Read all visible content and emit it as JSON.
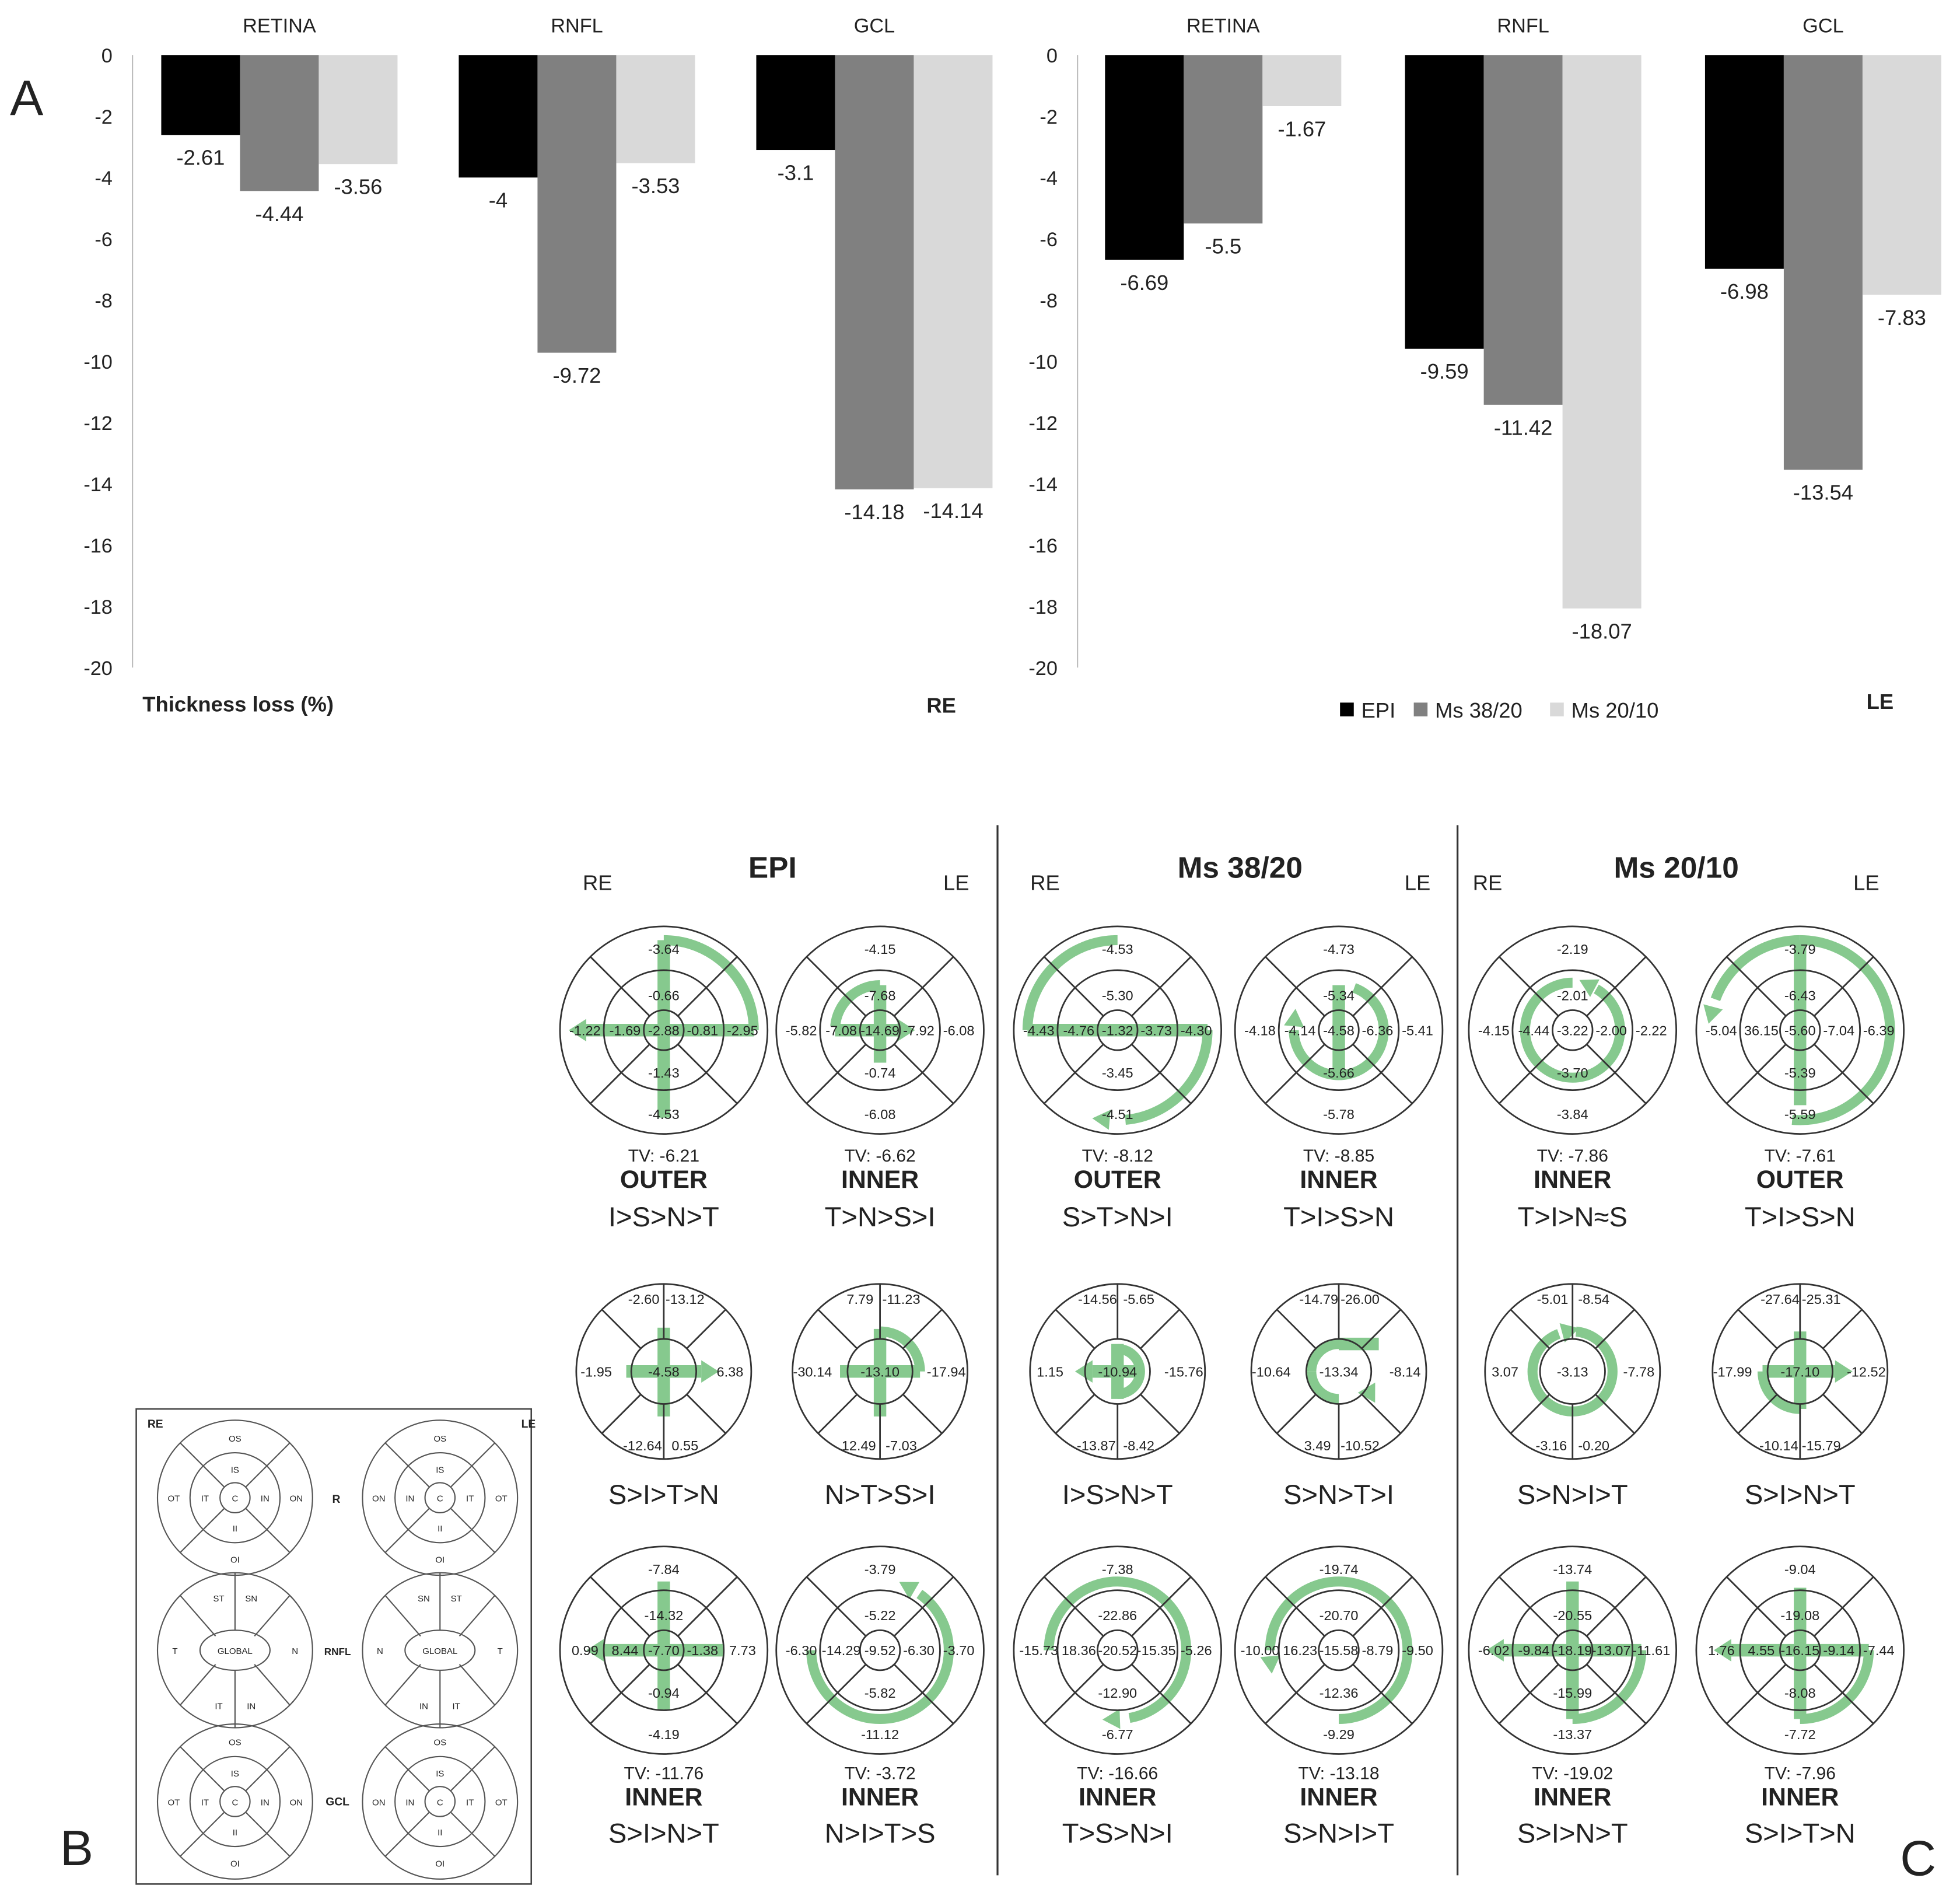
{
  "panel_letters": {
    "a": "A",
    "b": "B",
    "c": "C"
  },
  "colors": {
    "epi": "#000000",
    "ms3820": "#808080",
    "ms2010": "#d9d9d9",
    "arrow": "#86c98e",
    "ring": "#333333"
  },
  "chart_data": [
    {
      "type": "bar",
      "eye_label": "RE",
      "ylabel": "Thickness loss (%)",
      "ylim": [
        -20,
        0
      ],
      "yticks": [
        "0",
        "-2",
        "-4",
        "-6",
        "-8",
        "-10",
        "-12",
        "-14",
        "-16",
        "-18",
        "-20"
      ],
      "categories": [
        "RETINA",
        "RNFL",
        "GCL"
      ],
      "series": [
        {
          "name": "EPI",
          "values": [
            -2.61,
            -4,
            -3.1
          ],
          "labels": [
            "-2.61",
            "-4",
            "-3.1"
          ]
        },
        {
          "name": "Ms 38/20",
          "values": [
            -4.44,
            -9.72,
            -14.18
          ],
          "labels": [
            "-4.44",
            "-9.72",
            "-14.18"
          ]
        },
        {
          "name": "Ms 20/10",
          "values": [
            -3.56,
            -3.53,
            -14.14
          ],
          "labels": [
            "-3.56",
            "-3.53",
            "-14.14"
          ]
        }
      ]
    },
    {
      "type": "bar",
      "eye_label": "LE",
      "ylim": [
        -20,
        0
      ],
      "yticks": [
        "0",
        "-2",
        "-4",
        "-6",
        "-8",
        "-10",
        "-12",
        "-14",
        "-16",
        "-18",
        "-20"
      ],
      "categories": [
        "RETINA",
        "RNFL",
        "GCL"
      ],
      "legend": [
        "EPI",
        "Ms 38/20",
        "Ms 20/10"
      ],
      "series": [
        {
          "name": "EPI",
          "values": [
            -6.69,
            -9.59,
            -6.98
          ],
          "labels": [
            "-6.69",
            "-9.59",
            "-6.98"
          ]
        },
        {
          "name": "Ms 38/20",
          "values": [
            -5.5,
            -11.42,
            -13.54
          ],
          "labels": [
            "-5.5",
            "-11.42",
            "-13.54"
          ]
        },
        {
          "name": "Ms 20/10",
          "values": [
            -1.67,
            -18.07,
            -7.83
          ],
          "labels": [
            "-1.67",
            "-18.07",
            "-7.83"
          ]
        }
      ]
    }
  ],
  "legend_box": {
    "re": "RE",
    "le": "LE",
    "row_labels": [
      "R",
      "RNFL",
      "GCL"
    ],
    "retina_re": [
      "OS",
      "IS",
      "OT",
      "IT",
      "C",
      "IN",
      "ON",
      "II",
      "OI"
    ],
    "retina_le": [
      "OS",
      "IS",
      "ON",
      "IN",
      "C",
      "IT",
      "OT",
      "II",
      "OI"
    ],
    "rnfl_re": [
      "ST",
      "SN",
      "T",
      "GLOBAL",
      "N",
      "IT",
      "IN"
    ],
    "rnfl_le": [
      "SN",
      "ST",
      "N",
      "GLOBAL",
      "T",
      "IN",
      "IT"
    ],
    "gcl_re": [
      "OS",
      "IS",
      "OT",
      "IT",
      "C",
      "IN",
      "ON",
      "II",
      "OI"
    ],
    "gcl_le": [
      "OS",
      "IS",
      "ON",
      "IN",
      "C",
      "IT",
      "OT",
      "II",
      "OI"
    ]
  },
  "groups": [
    {
      "title": "EPI",
      "re": "RE",
      "le": "LE",
      "retina": [
        {
          "vals": [
            "-3.64",
            "-0.66",
            "-1.22",
            "-1.69",
            "-2.88",
            "-0.81",
            "-2.95",
            "-1.43",
            "-4.53"
          ],
          "tv": "TV: -6.21",
          "layer": "OUTER",
          "order": "I>S>N>T"
        },
        {
          "vals": [
            "-4.15",
            "-7.68",
            "-5.82",
            "-7.08",
            "-14.69",
            "-7.92",
            "-6.08",
            "-0.74",
            "-6.08"
          ],
          "tv": "TV: -6.62",
          "layer": "INNER",
          "order": "T>N>S>I"
        }
      ],
      "rnfl": [
        {
          "vals": [
            "-2.60",
            "-13.12",
            "-1.95",
            "-4.58",
            "6.38",
            "-12.64",
            "0.55"
          ],
          "order": "S>I>T>N"
        },
        {
          "vals": [
            "7.79",
            "-11.23",
            "-30.14",
            "-13.10",
            "-17.94",
            "12.49",
            "-7.03"
          ],
          "order": "N>T>S>I"
        }
      ],
      "gcl": [
        {
          "vals": [
            "-7.84",
            "-14.32",
            "0.99",
            "8.44",
            "-7.70",
            "-1.38",
            "7.73",
            "-0.94",
            "-4.19"
          ],
          "tv": "TV: -11.76",
          "layer": "INNER",
          "order": "S>I>N>T"
        },
        {
          "vals": [
            "-3.79",
            "-5.22",
            "-6.30",
            "-14.29",
            "-9.52",
            "-6.30",
            "-3.70",
            "-5.82",
            "-11.12"
          ],
          "tv": "TV: -3.72",
          "layer": "INNER",
          "order": "N>I>T>S"
        }
      ]
    },
    {
      "title": "Ms 38/20",
      "re": "RE",
      "le": "LE",
      "retina": [
        {
          "vals": [
            "-4.53",
            "-5.30",
            "-4.43",
            "-4.76",
            "-1.32",
            "-3.73",
            "-4.30",
            "-3.45",
            "-4.51"
          ],
          "tv": "TV: -8.12",
          "layer": "OUTER",
          "order": "S>T>N>I"
        },
        {
          "vals": [
            "-4.73",
            "-5.34",
            "-4.18",
            "-4.14",
            "-4.58",
            "-6.36",
            "-5.41",
            "-5.66",
            "-5.78"
          ],
          "tv": "TV: -8.85",
          "layer": "INNER",
          "order": "T>I>S>N"
        }
      ],
      "rnfl": [
        {
          "vals": [
            "-14.56",
            "-5.65",
            "1.15",
            "-10.94",
            "-15.76",
            "-13.87",
            "-8.42"
          ],
          "order": "I>S>N>T"
        },
        {
          "vals": [
            "-14.79",
            "-26.00",
            "-10.64",
            "-13.34",
            "-8.14",
            "3.49",
            "-10.52"
          ],
          "order": "S>N>T>I"
        }
      ],
      "gcl": [
        {
          "vals": [
            "-7.38",
            "-22.86",
            "-15.73",
            "18.36",
            "-20.52",
            "-15.35",
            "-5.26",
            "-12.90",
            "-6.77"
          ],
          "tv": "TV: -16.66",
          "layer": "INNER",
          "order": "T>S>N>I"
        },
        {
          "vals": [
            "-19.74",
            "-20.70",
            "-10.00",
            "16.23",
            "-15.58",
            "-8.79",
            "-9.50",
            "-12.36",
            "-9.29"
          ],
          "tv": "TV: -13.18",
          "layer": "INNER",
          "order": "S>N>I>T"
        }
      ]
    },
    {
      "title": "Ms 20/10",
      "re": "RE",
      "le": "LE",
      "retina": [
        {
          "vals": [
            "-2.19",
            "-2.01",
            "-4.15",
            "-4.44",
            "-3.22",
            "-2.00",
            "-2.22",
            "-3.70",
            "-3.84"
          ],
          "tv": "TV: -7.86",
          "layer": "INNER",
          "order": "T>I>N≈S"
        },
        {
          "vals": [
            "-3.79",
            "-6.43",
            "-5.04",
            "36.15",
            "-5.60",
            "-7.04",
            "-6.39",
            "-5.39",
            "-5.59"
          ],
          "tv": "TV: -7.61",
          "layer": "OUTER",
          "order": "T>I>S>N"
        }
      ],
      "rnfl": [
        {
          "vals": [
            "-5.01",
            "-8.54",
            "3.07",
            "-3.13",
            "-7.78",
            "-3.16",
            "-0.20"
          ],
          "order": "S>N>I>T"
        },
        {
          "vals": [
            "-27.64",
            "-25.31",
            "-17.99",
            "-17.10",
            "-12.52",
            "-10.14",
            "-15.79"
          ],
          "order": "S>I>N>T"
        }
      ],
      "gcl": [
        {
          "vals": [
            "-13.74",
            "-20.55",
            "-6.02",
            "-9.84",
            "-18.19",
            "-13.07",
            "-11.61",
            "-15.99",
            "-13.37"
          ],
          "tv": "TV: -19.02",
          "layer": "INNER",
          "order": "S>I>N>T"
        },
        {
          "vals": [
            "-9.04",
            "-19.08",
            "1.76",
            "4.55",
            "-16.15",
            "-9.14",
            "-7.44",
            "-8.08",
            "-7.72"
          ],
          "tv": "TV: -7.96",
          "layer": "INNER",
          "order": "S>I>T>N"
        }
      ]
    }
  ]
}
